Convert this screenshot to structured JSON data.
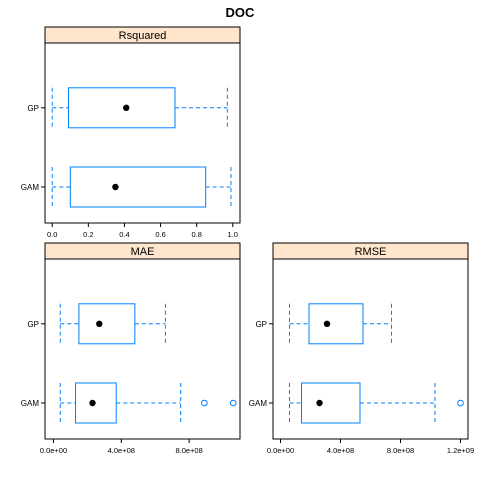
{
  "chart_data": {
    "type": "box",
    "title": "DOC",
    "colors": {
      "box": "#0080ff",
      "median": "#000000",
      "strip": "#ffe5cc",
      "outlier": "#0080ff"
    },
    "panels": [
      {
        "strip": "Rsquared",
        "categories": [
          "GP",
          "GAM"
        ],
        "xlim": [
          -0.04,
          1.04
        ],
        "ticks": [
          0.0,
          0.2,
          0.4,
          0.6,
          0.8,
          1.0
        ],
        "tick_labels": [
          "0.0",
          "0.2",
          "0.4",
          "0.6",
          "0.8",
          "1.0"
        ],
        "boxes": [
          {
            "cat": "GP",
            "min": 0.0,
            "q1": 0.09,
            "median": 0.41,
            "q3": 0.68,
            "max": 0.97,
            "outliers": []
          },
          {
            "cat": "GAM",
            "min": 0.0,
            "q1": 0.1,
            "median": 0.35,
            "q3": 0.85,
            "max": 0.99,
            "outliers": []
          }
        ]
      },
      {
        "strip": "MAE",
        "categories": [
          "GP",
          "GAM"
        ],
        "xlim": [
          -50000000.0,
          1100000000.0
        ],
        "ticks": [
          0,
          400000000.0,
          800000000.0
        ],
        "tick_labels": [
          "0.0e+00",
          "4.0e+08",
          "8.0e+08"
        ],
        "boxes": [
          {
            "cat": "GP",
            "min": 40000000.0,
            "q1": 150000000.0,
            "median": 270000000.0,
            "q3": 480000000.0,
            "max": 660000000.0,
            "outliers": []
          },
          {
            "cat": "GAM",
            "min": 40000000.0,
            "q1": 130000000.0,
            "median": 230000000.0,
            "q3": 370000000.0,
            "max": 750000000.0,
            "outliers": [
              890000000.0,
              1060000000.0
            ]
          }
        ]
      },
      {
        "strip": "RMSE",
        "categories": [
          "GP",
          "GAM"
        ],
        "xlim": [
          -50000000.0,
          1250000000.0
        ],
        "ticks": [
          0,
          400000000.0,
          800000000.0,
          1200000000.0
        ],
        "tick_labels": [
          "0.0e+00",
          "4.0e+08",
          "8.0e+08",
          "1.2e+09"
        ],
        "boxes": [
          {
            "cat": "GP",
            "min": 60000000.0,
            "q1": 190000000.0,
            "median": 310000000.0,
            "q3": 550000000.0,
            "max": 740000000.0,
            "outliers": []
          },
          {
            "cat": "GAM",
            "min": 60000000.0,
            "q1": 140000000.0,
            "median": 260000000.0,
            "q3": 530000000.0,
            "max": 1030000000.0,
            "outliers": [
              1200000000.0
            ]
          }
        ]
      }
    ]
  }
}
